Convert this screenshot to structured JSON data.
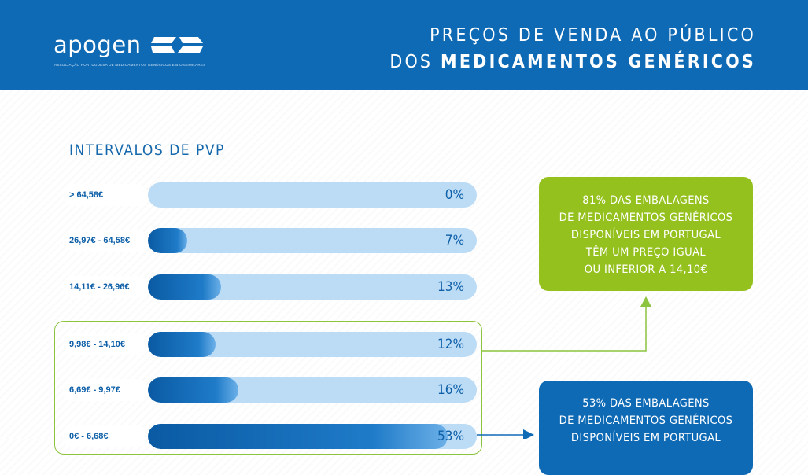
{
  "header": {
    "logo_text": "apogen",
    "logo_subtitle": "ASSOCIAÇÃO PORTUGUESA DE MEDICAMENTOS GENÉRICOS E BIOSSIMILARES",
    "title_line1": "PREÇOS DE VENDA AO PÚBLICO",
    "title_line2_prefix": "DOS ",
    "title_line2_bold": "MEDICAMENTOS GENÉRICOS"
  },
  "colors": {
    "header_blue": "#0e6ab5",
    "bar_blue": "#0a5aa3",
    "track_blue": "#bcdcf6",
    "green": "#95c11f"
  },
  "chart_data": {
    "type": "bar",
    "title": "INTERVALOS DE PVP",
    "orientation": "horizontal",
    "unit": "%",
    "xlim": [
      0,
      100
    ],
    "categories": [
      "> 64,58€",
      "26,97€ - 64,58€",
      "14,11€ - 26,96€",
      "9,98€ - 14,10€",
      "6,69€ - 9,97€",
      "0€ - 6,68€"
    ],
    "values": [
      0,
      7,
      13,
      12,
      16,
      53
    ],
    "value_labels": [
      "0%",
      "7%",
      "13%",
      "12%",
      "16%",
      "53%"
    ]
  },
  "callouts": {
    "green_lines": [
      "81% DAS EMBALAGENS",
      "DE MEDICAMENTOS GENÉRICOS",
      "DISPONÍVEIS EM PORTUGAL",
      "TÊM UM PREÇO IGUAL",
      "OU INFERIOR A 14,10€"
    ],
    "blue_lines": [
      "53% DAS EMBALAGENS",
      "DE MEDICAMENTOS GENÉRICOS",
      "DISPONÍVEIS EM PORTUGAL"
    ]
  }
}
